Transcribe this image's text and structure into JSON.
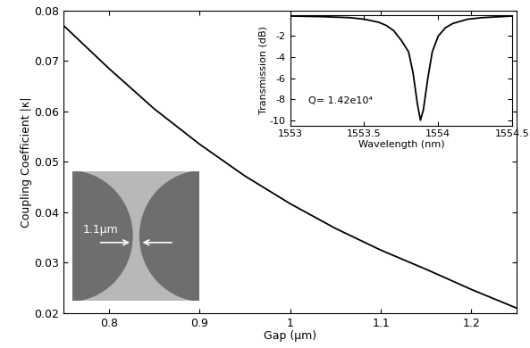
{
  "chart_data": [
    {
      "type": "line",
      "xlabel": "Gap (μm)",
      "ylabel": "Coupling Coefficient |κ|",
      "x": [
        0.75,
        0.8,
        0.85,
        0.9,
        0.95,
        1.0,
        1.05,
        1.1,
        1.15,
        1.2,
        1.25
      ],
      "values": [
        0.077,
        0.0685,
        0.0605,
        0.0535,
        0.0472,
        0.0417,
        0.0368,
        0.0325,
        0.0287,
        0.0247,
        0.021
      ],
      "color": "#000000",
      "xlim": [
        0.75,
        1.25
      ],
      "xticks": [
        0.8,
        0.9,
        1,
        1.1,
        1.2
      ],
      "ylim": [
        0.02,
        0.08
      ],
      "yticks": [
        0.02,
        0.03,
        0.04,
        0.05,
        0.06,
        0.07,
        0.08
      ],
      "annotations": [
        "1.1μm"
      ]
    },
    {
      "type": "line",
      "xlabel": "Wavelength (nm)",
      "ylabel": "Transmission (dB)",
      "x": [
        1553.0,
        1553.2,
        1553.4,
        1553.5,
        1553.6,
        1553.65,
        1553.7,
        1553.75,
        1553.8,
        1553.83,
        1553.86,
        1553.88,
        1553.9,
        1553.93,
        1553.96,
        1554.0,
        1554.05,
        1554.1,
        1554.2,
        1554.3,
        1554.5
      ],
      "values": [
        -0.1,
        -0.15,
        -0.25,
        -0.4,
        -0.7,
        -1.0,
        -1.5,
        -2.4,
        -3.5,
        -5.5,
        -8.5,
        -10,
        -9,
        -6,
        -3.5,
        -2.0,
        -1.2,
        -0.8,
        -0.4,
        -0.25,
        -0.1
      ],
      "color": "#000000",
      "xlim": [
        1553,
        1554.5
      ],
      "xticks": [
        1553,
        1553.5,
        1554,
        1554.5
      ],
      "ylim": [
        -10.5,
        0
      ],
      "yticks": [
        -10,
        -8,
        -6,
        -4,
        -2
      ],
      "annotations": [
        "Q= 1.42e10⁴"
      ]
    }
  ]
}
